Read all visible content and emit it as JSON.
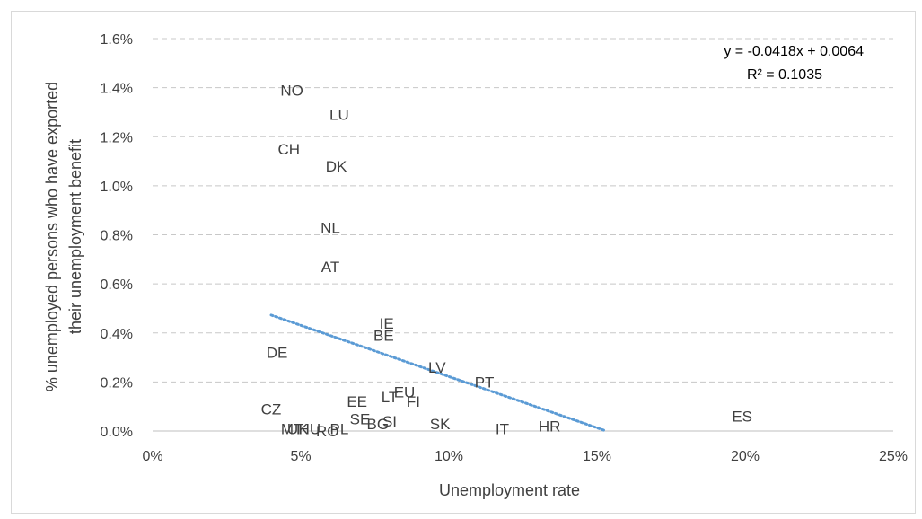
{
  "chart_data": {
    "type": "scatter",
    "title": "",
    "xlabel": "Unemployment rate",
    "ylabel_lines": [
      "% unemployed persons who have exported",
      "their unemployment benefit"
    ],
    "xlim": [
      0,
      0.25
    ],
    "ylim": [
      0,
      0.016
    ],
    "x_ticks": [
      0,
      0.05,
      0.1,
      0.15,
      0.2,
      0.25
    ],
    "x_tick_labels": [
      "0%",
      "5%",
      "10%",
      "15%",
      "20%",
      "25%"
    ],
    "y_ticks": [
      0,
      0.002,
      0.004,
      0.006,
      0.008,
      0.01,
      0.012,
      0.014,
      0.016
    ],
    "y_tick_labels": [
      "0.0%",
      "0.2%",
      "0.4%",
      "0.6%",
      "0.8%",
      "1.0%",
      "1.2%",
      "1.4%",
      "1.6%"
    ],
    "grid": "horizontal-dashed",
    "points": [
      {
        "label": "NO",
        "x": 0.047,
        "y": 0.0139
      },
      {
        "label": "LU",
        "x": 0.063,
        "y": 0.0129
      },
      {
        "label": "CH",
        "x": 0.046,
        "y": 0.0115
      },
      {
        "label": "DK",
        "x": 0.062,
        "y": 0.0108
      },
      {
        "label": "NL",
        "x": 0.06,
        "y": 0.0083
      },
      {
        "label": "AT",
        "x": 0.06,
        "y": 0.0067
      },
      {
        "label": "IE",
        "x": 0.079,
        "y": 0.0044
      },
      {
        "label": "BE",
        "x": 0.078,
        "y": 0.0039
      },
      {
        "label": "DE",
        "x": 0.042,
        "y": 0.0032
      },
      {
        "label": "LV",
        "x": 0.096,
        "y": 0.0026
      },
      {
        "label": "PT",
        "x": 0.112,
        "y": 0.002
      },
      {
        "label": "EU",
        "x": 0.085,
        "y": 0.0016
      },
      {
        "label": "LT",
        "x": 0.08,
        "y": 0.0014
      },
      {
        "label": "FI",
        "x": 0.088,
        "y": 0.0012
      },
      {
        "label": "EE",
        "x": 0.069,
        "y": 0.0012
      },
      {
        "label": "CZ",
        "x": 0.04,
        "y": 0.0009
      },
      {
        "label": "SE",
        "x": 0.07,
        "y": 0.0005
      },
      {
        "label": "SI",
        "x": 0.08,
        "y": 0.0004
      },
      {
        "label": "BG",
        "x": 0.076,
        "y": 0.0003
      },
      {
        "label": "SK",
        "x": 0.097,
        "y": 0.0003
      },
      {
        "label": "PL",
        "x": 0.063,
        "y": 0.0001
      },
      {
        "label": "RO",
        "x": 0.059,
        "y": 0.0
      },
      {
        "label": "HU",
        "x": 0.053,
        "y": 0.0001
      },
      {
        "label": "UK",
        "x": 0.049,
        "y": 0.0001
      },
      {
        "label": "MT",
        "x": 0.047,
        "y": 0.0001
      },
      {
        "label": "IT",
        "x": 0.118,
        "y": 0.0001
      },
      {
        "label": "HR",
        "x": 0.134,
        "y": 0.0002
      },
      {
        "label": "ES",
        "x": 0.199,
        "y": 0.0006
      }
    ],
    "trendline": {
      "style": "dotted",
      "color": "#5b9bd5",
      "slope": -0.0418,
      "intercept": 0.0064,
      "x_range": [
        0.04,
        0.153
      ],
      "equation_text": "y = -0.0418x + 0.0064",
      "r2_text": "R² = 0.1035"
    }
  }
}
